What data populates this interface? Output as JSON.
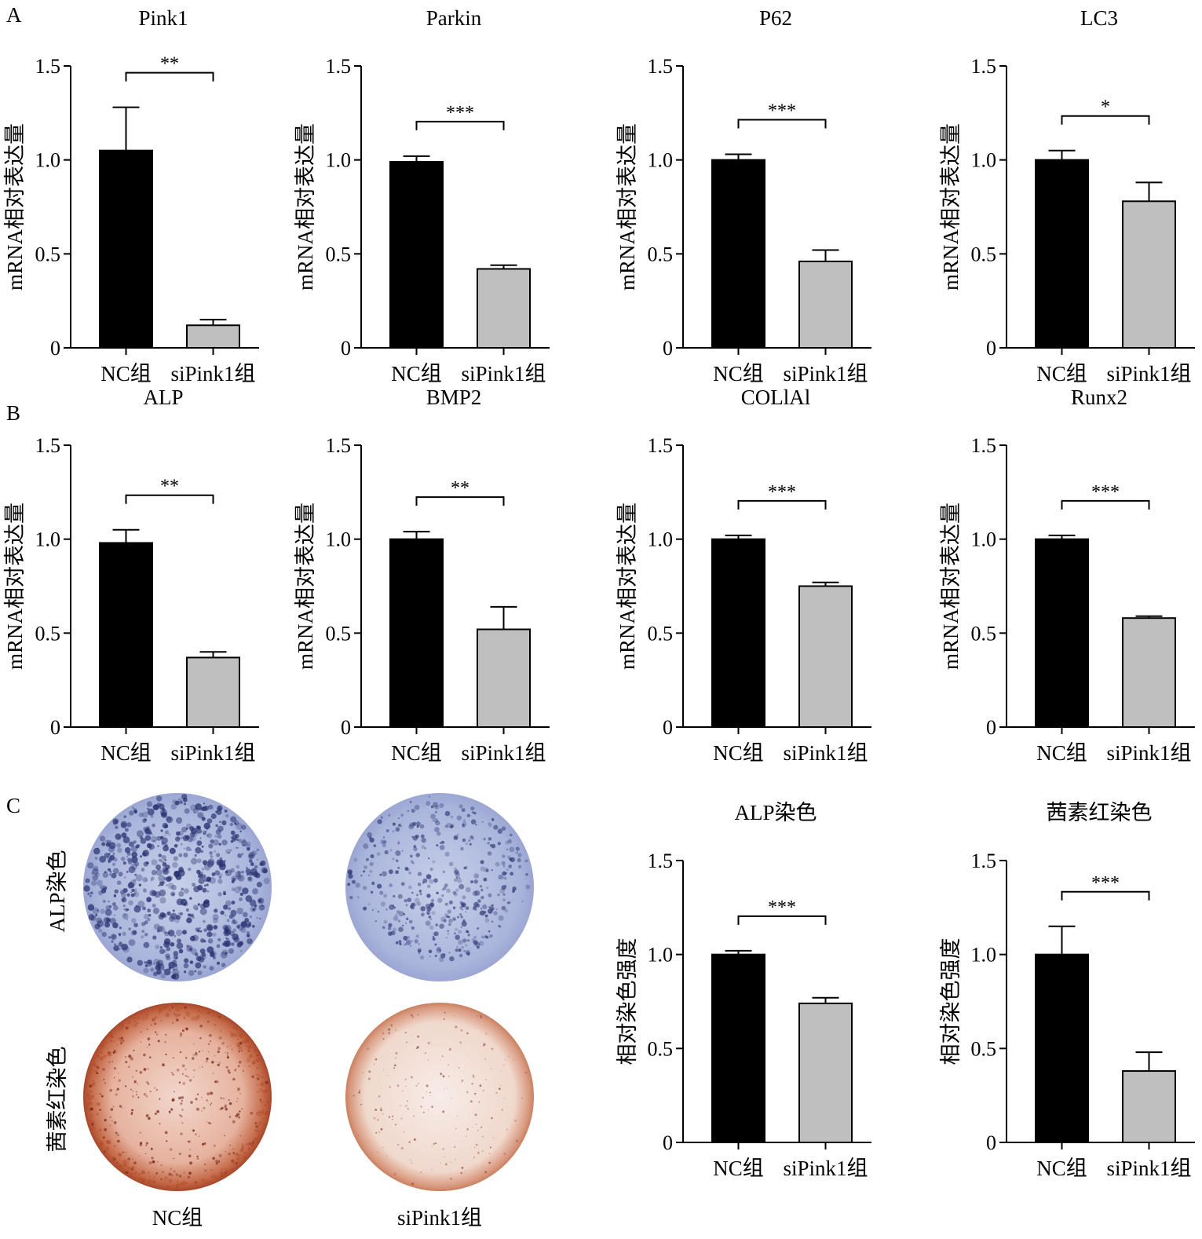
{
  "panel_labels": [
    "A",
    "B",
    "C"
  ],
  "photos": {
    "row_labels": [
      "ALP染色",
      "茜素红染色"
    ],
    "col_labels": [
      "NC组",
      "siPink1组"
    ],
    "colors": {
      "alp_bg": "#d9def0",
      "alp_stain": "#27306e",
      "ars_bg": "#f7e8e2",
      "ars_rim": "#b04a2a",
      "ars_dot": "#7a2418"
    }
  },
  "colors": {
    "nc_bar": "#000000",
    "si_bar": "#bfbfbf"
  },
  "chart_data": [
    {
      "type": "bar",
      "title": "Pink1",
      "ylabel": "mRNA相对表达量",
      "categories": [
        "NC组",
        "siPink1组"
      ],
      "values": [
        1.05,
        0.12
      ],
      "errors": [
        0.23,
        0.03
      ],
      "significance": "**",
      "ylim": [
        0,
        1.5
      ],
      "yticks": [
        "0",
        "0.5",
        "1.0",
        "1.5"
      ],
      "grid": false
    },
    {
      "type": "bar",
      "title": "Parkin",
      "ylabel": "mRNA相对表达量",
      "categories": [
        "NC组",
        "siPink1组"
      ],
      "values": [
        0.99,
        0.42
      ],
      "errors": [
        0.03,
        0.02
      ],
      "significance": "***",
      "ylim": [
        0,
        1.5
      ],
      "yticks": [
        "0",
        "0.5",
        "1.0",
        "1.5"
      ],
      "grid": false
    },
    {
      "type": "bar",
      "title": "P62",
      "ylabel": "mRNA相对表达量",
      "categories": [
        "NC组",
        "siPink1组"
      ],
      "values": [
        1.0,
        0.46
      ],
      "errors": [
        0.03,
        0.06
      ],
      "significance": "***",
      "ylim": [
        0,
        1.5
      ],
      "yticks": [
        "0",
        "0.5",
        "1.0",
        "1.5"
      ],
      "grid": false
    },
    {
      "type": "bar",
      "title": "LC3",
      "ylabel": "mRNA相对表达量",
      "categories": [
        "NC组",
        "siPink1组"
      ],
      "values": [
        1.0,
        0.78
      ],
      "errors": [
        0.05,
        0.1
      ],
      "significance": "*",
      "ylim": [
        0,
        1.5
      ],
      "yticks": [
        "0",
        "0.5",
        "1.0",
        "1.5"
      ],
      "grid": false
    },
    {
      "type": "bar",
      "title": "ALP",
      "ylabel": "mRNA相对表达量",
      "categories": [
        "NC组",
        "siPink1组"
      ],
      "values": [
        0.98,
        0.37
      ],
      "errors": [
        0.07,
        0.03
      ],
      "significance": "**",
      "ylim": [
        0,
        1.5
      ],
      "yticks": [
        "0",
        "0.5",
        "1.0",
        "1.5"
      ],
      "grid": false
    },
    {
      "type": "bar",
      "title": "BMP2",
      "ylabel": "mRNA相对表达量",
      "categories": [
        "NC组",
        "siPink1组"
      ],
      "values": [
        1.0,
        0.52
      ],
      "errors": [
        0.04,
        0.12
      ],
      "significance": "**",
      "ylim": [
        0,
        1.5
      ],
      "yticks": [
        "0",
        "0.5",
        "1.0",
        "1.5"
      ],
      "grid": false
    },
    {
      "type": "bar",
      "title": "COLlAl",
      "ylabel": "mRNA相对表达量",
      "categories": [
        "NC组",
        "siPink1组"
      ],
      "values": [
        1.0,
        0.75
      ],
      "errors": [
        0.02,
        0.02
      ],
      "significance": "***",
      "ylim": [
        0,
        1.5
      ],
      "yticks": [
        "0",
        "0.5",
        "1.0",
        "1.5"
      ],
      "grid": false
    },
    {
      "type": "bar",
      "title": "Runx2",
      "ylabel": "mRNA相对表达量",
      "categories": [
        "NC组",
        "siPink1组"
      ],
      "values": [
        1.0,
        0.58
      ],
      "errors": [
        0.02,
        0.01
      ],
      "significance": "***",
      "ylim": [
        0,
        1.5
      ],
      "yticks": [
        "0",
        "0.5",
        "1.0",
        "1.5"
      ],
      "grid": false
    },
    {
      "type": "bar",
      "title": "ALP染色",
      "ylabel": "相对染色强度",
      "categories": [
        "NC组",
        "siPink1组"
      ],
      "values": [
        1.0,
        0.74
      ],
      "errors": [
        0.02,
        0.03
      ],
      "significance": "***",
      "ylim": [
        0,
        1.5
      ],
      "yticks": [
        "0",
        "0.5",
        "1.0",
        "1.5"
      ],
      "grid": false
    },
    {
      "type": "bar",
      "title": "茜素红染色",
      "ylabel": "相对染色强度",
      "categories": [
        "NC组",
        "siPink1组"
      ],
      "values": [
        1.0,
        0.38
      ],
      "errors": [
        0.15,
        0.1
      ],
      "significance": "***",
      "ylim": [
        0,
        1.5
      ],
      "yticks": [
        "0",
        "0.5",
        "1.0",
        "1.5"
      ],
      "grid": false
    }
  ]
}
